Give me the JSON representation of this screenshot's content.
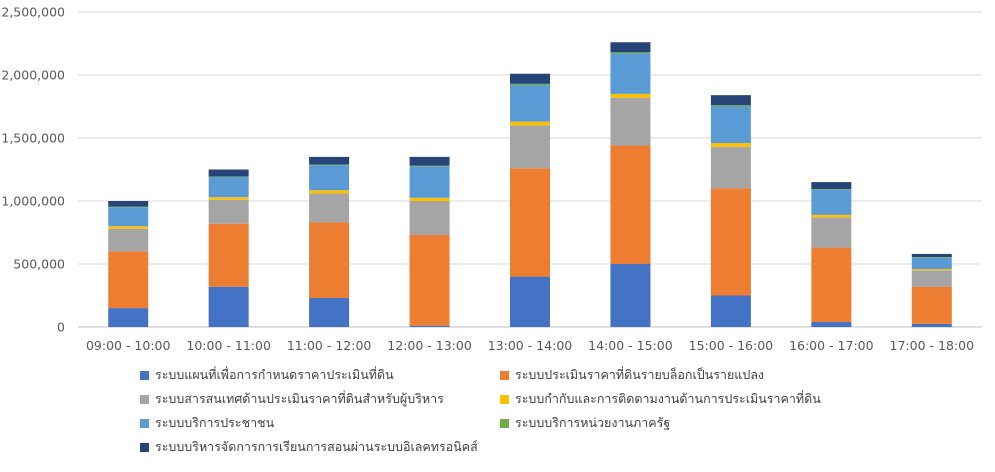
{
  "chart_data": {
    "type": "bar",
    "stacked": true,
    "title": "",
    "xlabel": "",
    "ylabel": "",
    "ylim": [
      0,
      2500000
    ],
    "yticks": [
      "0",
      "500,000",
      "1,000,000",
      "1,500,000",
      "2,000,000",
      "2,500,000"
    ],
    "ytick_values": [
      0,
      500000,
      1000000,
      1500000,
      2000000,
      2500000
    ],
    "grid": true,
    "legend_position": "bottom",
    "categories": [
      "09:00 - 10:00",
      "10:00 - 11:00",
      "11:00 - 12:00",
      "12:00 - 13:00",
      "13:00 - 14:00",
      "14:00 - 15:00",
      "15:00 - 16:00",
      "16:00 - 17:00",
      "17:00 - 18:00"
    ],
    "series": [
      {
        "name": "ระบบแผนที่เพื่อการกำหนดราคาประเมินที่ดิน",
        "color": "#4472C4",
        "values": [
          150000,
          320000,
          230000,
          10000,
          400000,
          500000,
          250000,
          40000,
          25000
        ]
      },
      {
        "name": "ระบบประเมินราคาที่ดินรายบล็อกเป็นรายแปลง",
        "color": "#ED7D31",
        "values": [
          450000,
          500000,
          600000,
          720000,
          860000,
          940000,
          850000,
          590000,
          295000
        ]
      },
      {
        "name": "ระบบสารสนเทศด้านประเมินราคาที่ดินสำหรับผู้บริหาร",
        "color": "#A5A5A5",
        "values": [
          180000,
          190000,
          230000,
          270000,
          340000,
          380000,
          330000,
          240000,
          130000
        ]
      },
      {
        "name": "ระบบกำกับและการติดตามงานด้านการประเมินราคาที่ดิน",
        "color": "#FFC000",
        "values": [
          20000,
          20000,
          25000,
          25000,
          30000,
          30000,
          30000,
          20000,
          10000
        ]
      },
      {
        "name": "ระบบบริการประชาชน",
        "color": "#5B9BD5",
        "values": [
          150000,
          160000,
          200000,
          250000,
          290000,
          320000,
          290000,
          200000,
          90000
        ]
      },
      {
        "name": "ระบบบริการหน่วยงานภาครัฐ",
        "color": "#70AD47",
        "values": [
          5000,
          5000,
          5000,
          5000,
          10000,
          10000,
          10000,
          5000,
          5000
        ]
      },
      {
        "name": "ระบบบริหารจัดการการเรียนการสอนผ่านระบบอิเลคทรอนิคส์",
        "color": "#264478",
        "values": [
          45000,
          55000,
          60000,
          70000,
          80000,
          80000,
          80000,
          55000,
          25000
        ]
      }
    ]
  }
}
